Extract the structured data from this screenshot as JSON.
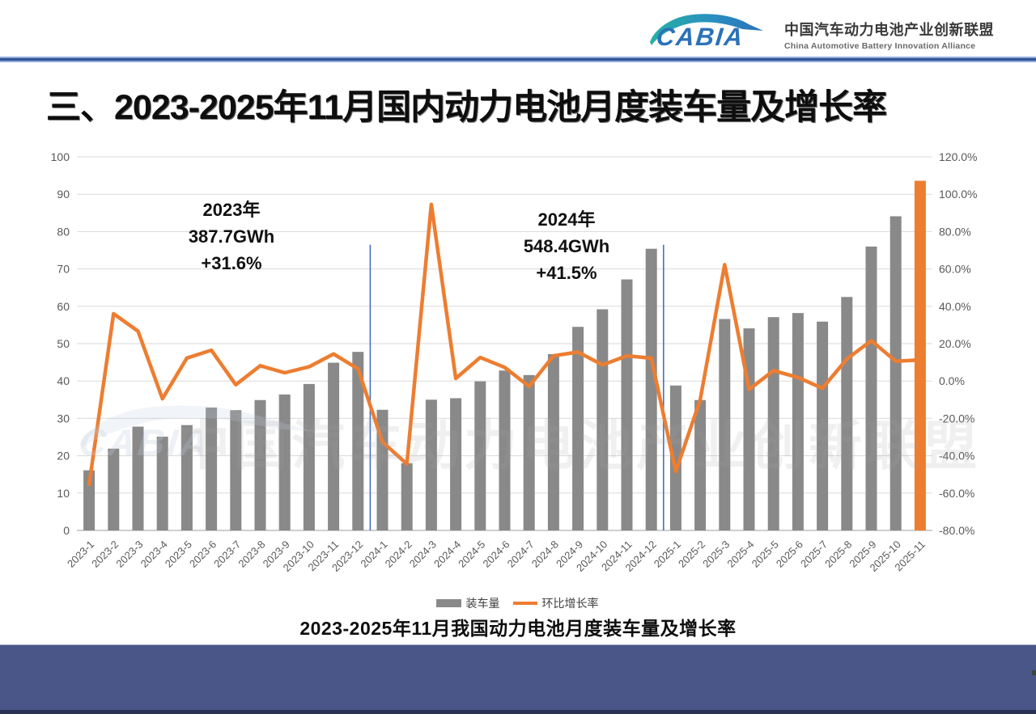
{
  "header": {
    "logo_text": "CABIA",
    "org_name_zh": "中国汽车动力电池产业创新联盟",
    "org_name_en": "China Automotive Battery Innovation Alliance"
  },
  "title": "三、2023-2025年11月国内动力电池月度装车量及增长率",
  "annotations": {
    "y2023": {
      "line1": "2023年",
      "line2": "387.7GWh",
      "line3": "+31.6%"
    },
    "y2024": {
      "line1": "2024年",
      "line2": "548.4GWh",
      "line3": "+41.5%"
    }
  },
  "legend": {
    "bar_label": "装车量",
    "line_label": "环比增长率"
  },
  "caption": "2023-2025年11月我国动力电池月度装车量及增长率",
  "watermark": {
    "logo": "CABIA",
    "text": "中国汽车动力电池产业创新联盟"
  },
  "colors": {
    "bar": "#898989",
    "line": "#ed7d31",
    "highlight_bar": "#ed7d31",
    "separator": "#4472c4",
    "grid": "#d9d9d9",
    "axis_line": "#bfbfbf",
    "tick_label": "#595959",
    "footer": "#4a5588",
    "divider_blue": "#2f5597",
    "logo_blue": "#2b72b8",
    "logo_teal": "#27b1a3"
  },
  "chart_data": {
    "type": "bar",
    "subtype": "combo-bar-line-dual-axis",
    "title": "2023-2025年11月我国动力电池月度装车量及增长率",
    "categories": [
      "2023-1",
      "2023-2",
      "2023-3",
      "2023-4",
      "2023-5",
      "2023-6",
      "2023-7",
      "2023-8",
      "2023-9",
      "2023-10",
      "2023-11",
      "2023-12",
      "2024-1",
      "2024-2",
      "2024-3",
      "2024-4",
      "2024-5",
      "2024-6",
      "2024-7",
      "2024-8",
      "2024-9",
      "2024-10",
      "2024-11",
      "2024-12",
      "2025-1",
      "2025-2",
      "2025-3",
      "2025-4",
      "2025-5",
      "2025-6",
      "2025-7",
      "2025-8",
      "2025-9",
      "2025-10",
      "2025-11"
    ],
    "series": [
      {
        "name": "装车量",
        "type": "bar",
        "axis": "left",
        "unit": "GWh",
        "values": [
          16.1,
          21.9,
          27.8,
          25.1,
          28.2,
          32.9,
          32.2,
          34.9,
          36.4,
          39.2,
          44.9,
          47.8,
          32.3,
          18.0,
          35.0,
          35.4,
          39.9,
          42.8,
          41.6,
          47.2,
          54.5,
          59.2,
          67.2,
          75.4,
          38.8,
          34.9,
          56.6,
          54.1,
          57.1,
          58.2,
          55.9,
          62.5,
          76.0,
          84.1,
          93.6
        ]
      },
      {
        "name": "环比增长率",
        "type": "line",
        "axis": "right",
        "unit": "%",
        "values": [
          -55.4,
          36.0,
          26.7,
          -9.5,
          12.3,
          16.5,
          -2.0,
          8.2,
          4.4,
          7.6,
          14.5,
          6.5,
          -32.6,
          -44.4,
          94.6,
          1.4,
          12.6,
          7.3,
          -2.9,
          13.5,
          15.5,
          8.6,
          13.5,
          12.2,
          -48.5,
          -10.1,
          62.3,
          -4.5,
          5.6,
          1.9,
          -3.9,
          11.8,
          21.6,
          10.6,
          11.3
        ]
      }
    ],
    "left_axis": {
      "min": 0,
      "max": 100,
      "step": 10
    },
    "right_axis": {
      "min": -80,
      "max": 120,
      "step": 20,
      "format": "percent1"
    },
    "grid": true,
    "legend_position": "bottom",
    "highlight_last_bar": true,
    "separators_after": [
      "2023-12",
      "2024-12"
    ],
    "separator_top_value": 76.5
  }
}
